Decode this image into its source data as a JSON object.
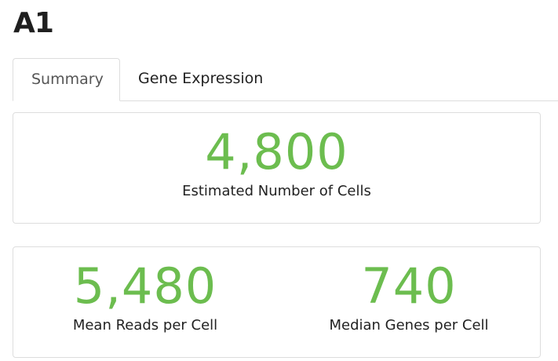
{
  "page": {
    "title": "A1"
  },
  "tabs": [
    {
      "label": "Summary",
      "active": true
    },
    {
      "label": "Gene Expression",
      "active": false
    }
  ],
  "summary": {
    "cells": {
      "value": "4,800",
      "label": "Estimated Number of Cells"
    },
    "reads": {
      "value": "5,480",
      "label": "Mean Reads per Cell"
    },
    "genes": {
      "value": "740",
      "label": "Median Genes per Cell"
    }
  },
  "colors": {
    "metric_value": "#6cbd4f",
    "border": "#dddddd"
  }
}
